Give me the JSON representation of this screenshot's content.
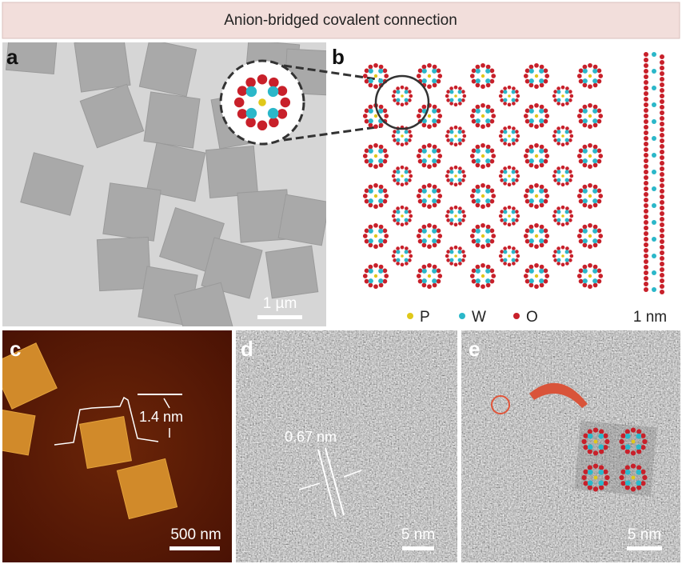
{
  "header": {
    "title": "Anion-bridged covalent connection"
  },
  "panels": [
    {
      "label": "a",
      "scale_bar": "1 µm"
    },
    {
      "label": "b",
      "legend": [
        "P",
        "W",
        "O"
      ],
      "side_label": "1 nm"
    },
    {
      "label": "c",
      "annotation": "1.4 nm",
      "scale_bar": "500 nm"
    },
    {
      "label": "d",
      "annotation": "0.67 nm",
      "scale_bar": "5 nm"
    },
    {
      "label": "e",
      "scale_bar": "5 nm"
    }
  ]
}
